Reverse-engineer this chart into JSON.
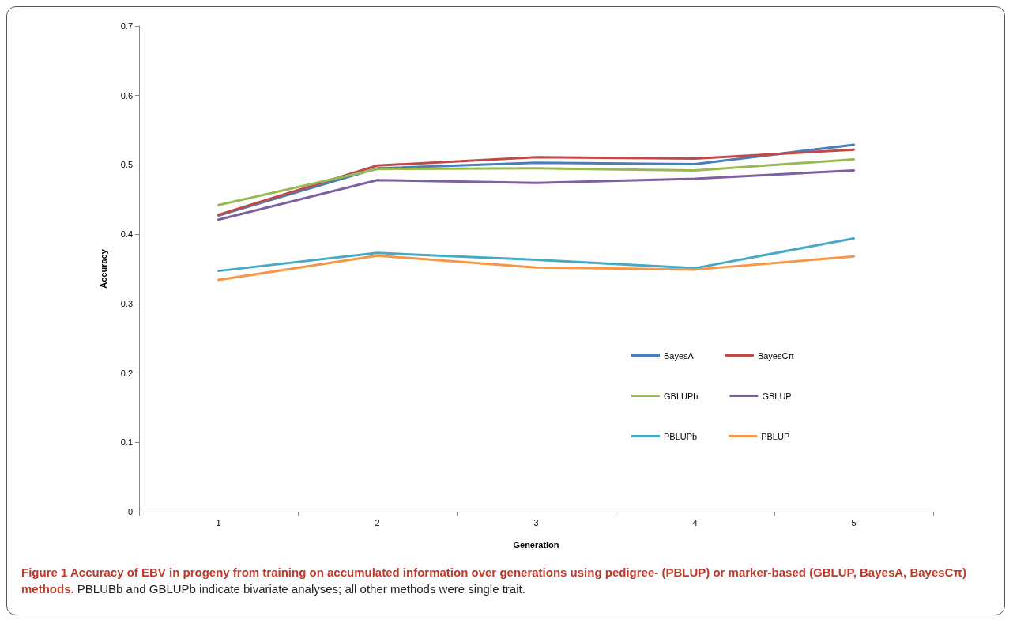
{
  "chart_data": {
    "type": "line",
    "title": "Figure 1 Accuracy of EBV in progeny from training on accumulated information over generations using pedigree- (PBLUP) or marker-based (GBLUP, BayesA, BayesCπ) methods.",
    "annotations": [
      "PBLUBb and GBLUPb indicate bivariate analyses; all other methods were single trait."
    ],
    "xlabel": "Generation",
    "ylabel": "Accuracy",
    "categories": [
      "1",
      "2",
      "3",
      "4",
      "5"
    ],
    "series": [
      {
        "name": "BayesA",
        "color": "#4a7ebb",
        "values": [
          0.427,
          0.495,
          0.503,
          0.501,
          0.529
        ]
      },
      {
        "name": "BayesCπ",
        "color": "#be4b48",
        "values": [
          0.428,
          0.499,
          0.511,
          0.509,
          0.522
        ]
      },
      {
        "name": "GBLUPb",
        "color": "#98b954",
        "values": [
          0.442,
          0.494,
          0.495,
          0.492,
          0.508
        ]
      },
      {
        "name": "GBLUP",
        "color": "#7d60a0",
        "values": [
          0.421,
          0.478,
          0.474,
          0.48,
          0.492
        ]
      },
      {
        "name": "PBLUPb",
        "color": "#46aac5",
        "values": [
          0.347,
          0.373,
          0.363,
          0.351,
          0.394
        ]
      },
      {
        "name": "PBLUP",
        "color": "#f79646",
        "values": [
          0.334,
          0.369,
          0.352,
          0.349,
          0.368
        ]
      }
    ],
    "ylim": [
      0,
      0.7
    ],
    "yticks": [
      0,
      0.1,
      0.2,
      0.3,
      0.4,
      0.5,
      0.6,
      0.7
    ],
    "grid": false,
    "legend": "bottom right",
    "marker": "none",
    "line_style": "solid"
  }
}
